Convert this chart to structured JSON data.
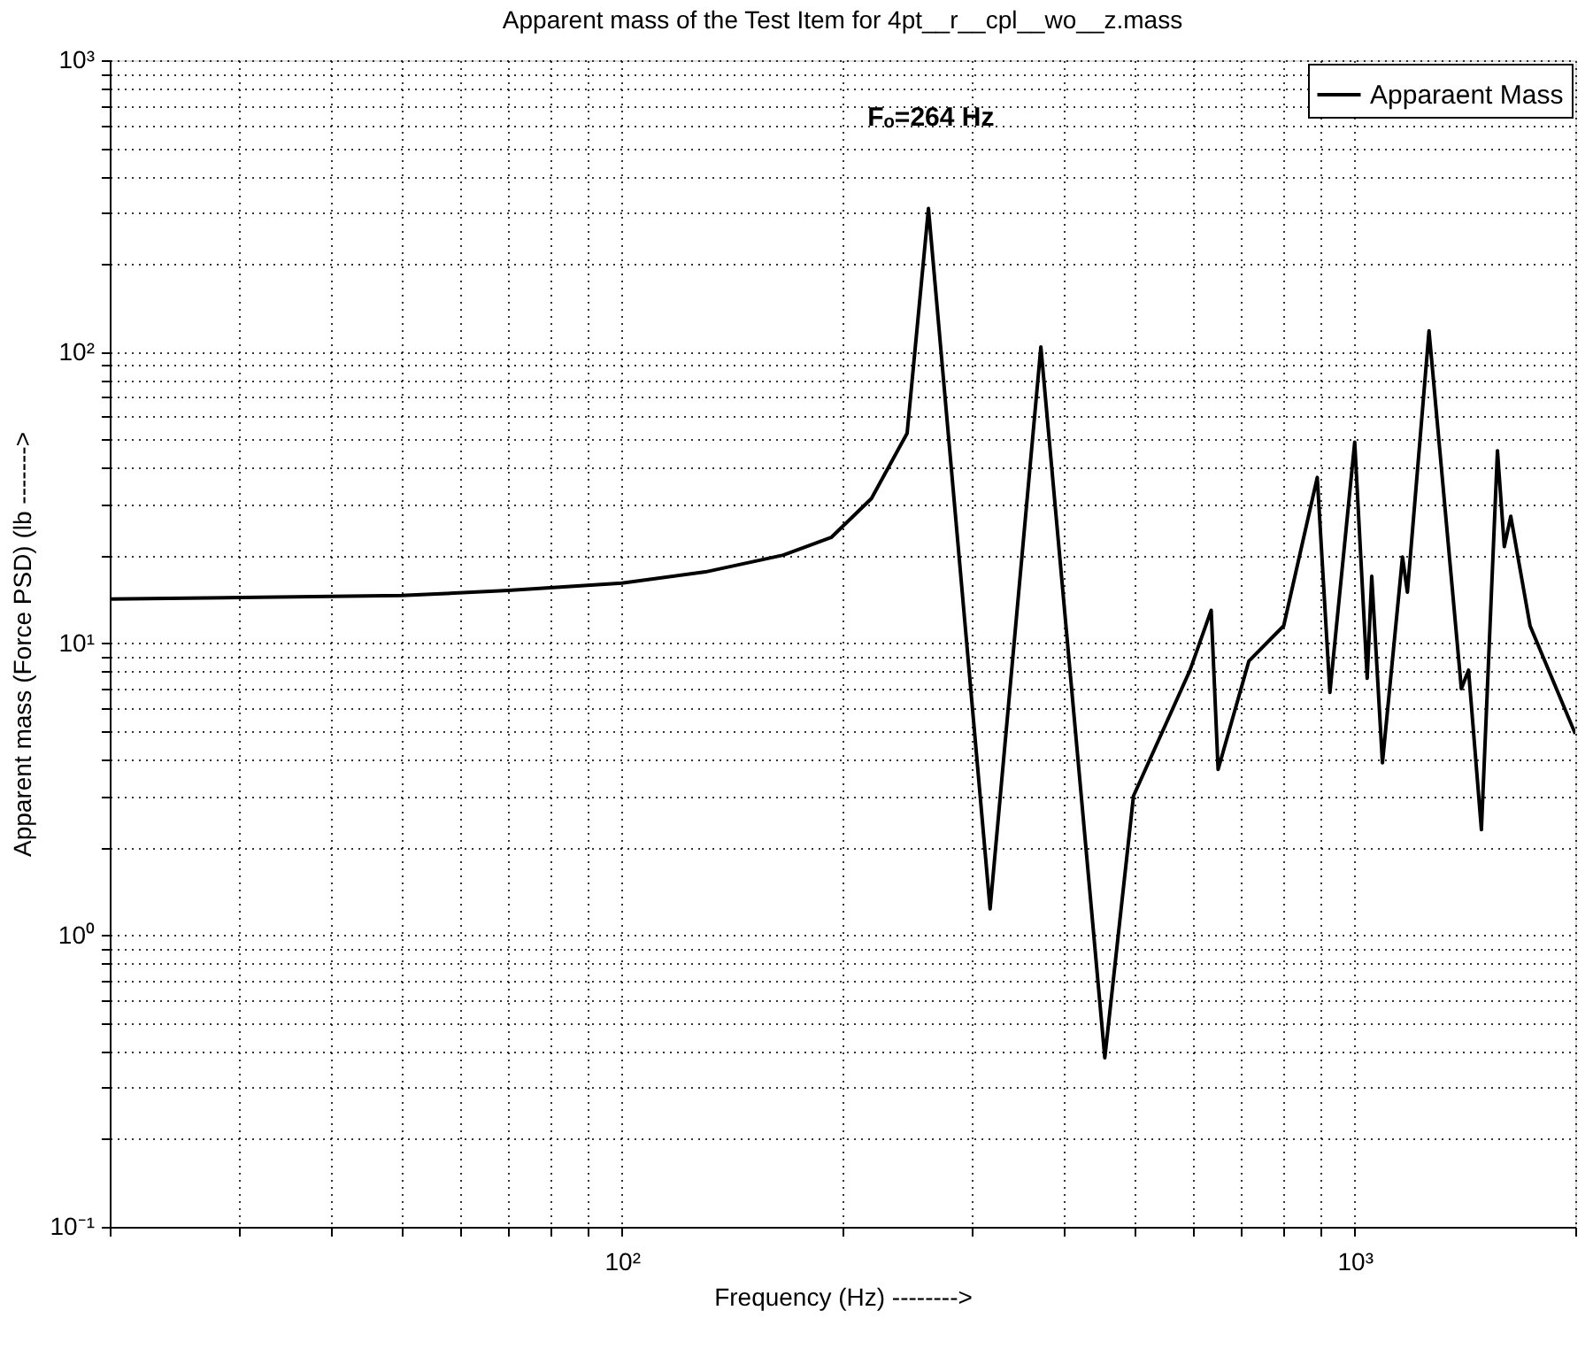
{
  "chart_data": {
    "type": "line",
    "title": "Apparent mass of the Test Item for 4pt__r__cpl__wo__z.mass",
    "xlabel": "Frequency (Hz) -------->",
    "ylabel": "Apparent mass (Force PSD) (lb     ------->",
    "x": [
      20,
      50,
      70,
      100,
      130,
      166,
      193,
      219,
      245,
      262,
      318,
      373,
      456,
      499,
      596,
      637,
      651,
      717,
      800,
      889,
      925,
      1000,
      1040,
      1055,
      1091,
      1162,
      1180,
      1263,
      1398,
      1430,
      1489,
      1566,
      1600,
      1633,
      1735,
      2000
    ],
    "series": [
      {
        "name": "Apparaent Mass",
        "color": "#000000",
        "values": [
          14.2,
          14.6,
          15.2,
          16.1,
          17.6,
          20.1,
          23.1,
          31.4,
          52.6,
          310,
          1.23,
          104,
          0.38,
          3.0,
          8.1,
          13.0,
          3.7,
          8.7,
          11.5,
          37.1,
          6.8,
          49,
          7.6,
          17.0,
          3.9,
          19.8,
          15,
          118,
          7.0,
          8.1,
          2.3,
          45.8,
          21.5,
          27.3,
          11.5,
          4.9
        ]
      }
    ],
    "annotations": [
      {
        "text": "Fₒ=264 Hz",
        "x": 264,
        "y": 310
      }
    ],
    "xlim": [
      20,
      2000
    ],
    "ylim": [
      0.1,
      1000
    ],
    "xticks": [
      {
        "value": 20,
        "label": null
      },
      {
        "value": 30,
        "label": null
      },
      {
        "value": 40,
        "label": null
      },
      {
        "value": 50,
        "label": null
      },
      {
        "value": 60,
        "label": null
      },
      {
        "value": 70,
        "label": null
      },
      {
        "value": 80,
        "label": null
      },
      {
        "value": 90,
        "label": null
      },
      {
        "value": 100,
        "label": "10²"
      },
      {
        "value": 200,
        "label": null
      },
      {
        "value": 300,
        "label": null
      },
      {
        "value": 400,
        "label": null
      },
      {
        "value": 500,
        "label": null
      },
      {
        "value": 600,
        "label": null
      },
      {
        "value": 700,
        "label": null
      },
      {
        "value": 800,
        "label": null
      },
      {
        "value": 900,
        "label": null
      },
      {
        "value": 1000,
        "label": "10³"
      },
      {
        "value": 2000,
        "label": null
      }
    ],
    "yticks": [
      {
        "value": 0.1,
        "label": "10⁻¹"
      },
      {
        "value": 0.2,
        "label": null
      },
      {
        "value": 0.3,
        "label": null
      },
      {
        "value": 0.4,
        "label": null
      },
      {
        "value": 0.5,
        "label": null
      },
      {
        "value": 0.6,
        "label": null
      },
      {
        "value": 0.7,
        "label": null
      },
      {
        "value": 0.8,
        "label": null
      },
      {
        "value": 0.9,
        "label": null
      },
      {
        "value": 1,
        "label": "10⁰"
      },
      {
        "value": 2,
        "label": null
      },
      {
        "value": 3,
        "label": null
      },
      {
        "value": 4,
        "label": null
      },
      {
        "value": 5,
        "label": null
      },
      {
        "value": 6,
        "label": null
      },
      {
        "value": 7,
        "label": null
      },
      {
        "value": 8,
        "label": null
      },
      {
        "value": 9,
        "label": null
      },
      {
        "value": 10,
        "label": "10¹"
      },
      {
        "value": 20,
        "label": null
      },
      {
        "value": 30,
        "label": null
      },
      {
        "value": 40,
        "label": null
      },
      {
        "value": 50,
        "label": null
      },
      {
        "value": 60,
        "label": null
      },
      {
        "value": 70,
        "label": null
      },
      {
        "value": 80,
        "label": null
      },
      {
        "value": 90,
        "label": null
      },
      {
        "value": 100,
        "label": "10²"
      },
      {
        "value": 200,
        "label": null
      },
      {
        "value": 300,
        "label": null
      },
      {
        "value": 400,
        "label": null
      },
      {
        "value": 500,
        "label": null
      },
      {
        "value": 600,
        "label": null
      },
      {
        "value": 700,
        "label": null
      },
      {
        "value": 800,
        "label": null
      },
      {
        "value": 900,
        "label": null
      },
      {
        "value": 1000,
        "label": "10³"
      }
    ],
    "log": "xy",
    "grid": true,
    "legend": "top right",
    "line_style": "solid"
  }
}
